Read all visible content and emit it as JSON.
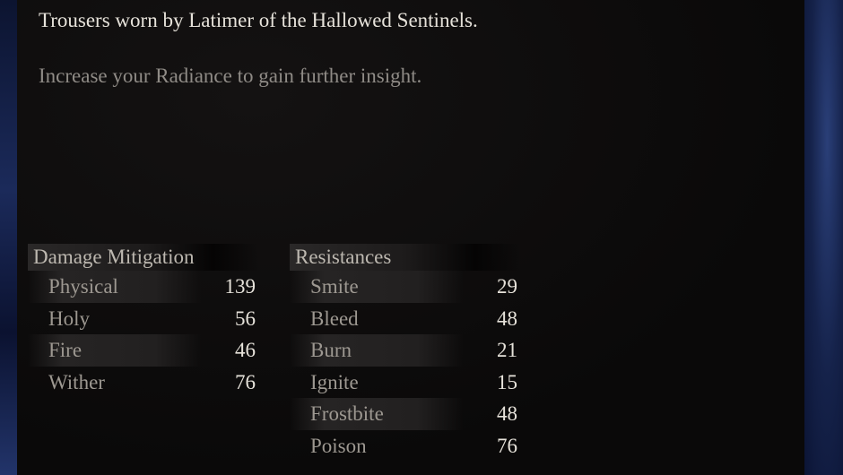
{
  "item": {
    "description": "Trousers worn by Latimer of the Hallowed Sentinels.",
    "hint": "Increase your Radiance to gain further insight."
  },
  "damage_mitigation": {
    "title": "Damage Mitigation",
    "rows": [
      {
        "label": "Physical",
        "value": "139"
      },
      {
        "label": "Holy",
        "value": "56"
      },
      {
        "label": "Fire",
        "value": "46"
      },
      {
        "label": "Wither",
        "value": "76"
      }
    ]
  },
  "resistances": {
    "title": "Resistances",
    "rows": [
      {
        "label": "Smite",
        "value": "29"
      },
      {
        "label": "Bleed",
        "value": "48"
      },
      {
        "label": "Burn",
        "value": "21"
      },
      {
        "label": "Ignite",
        "value": "15"
      },
      {
        "label": "Frostbite",
        "value": "48"
      },
      {
        "label": "Poison",
        "value": "76"
      }
    ]
  }
}
